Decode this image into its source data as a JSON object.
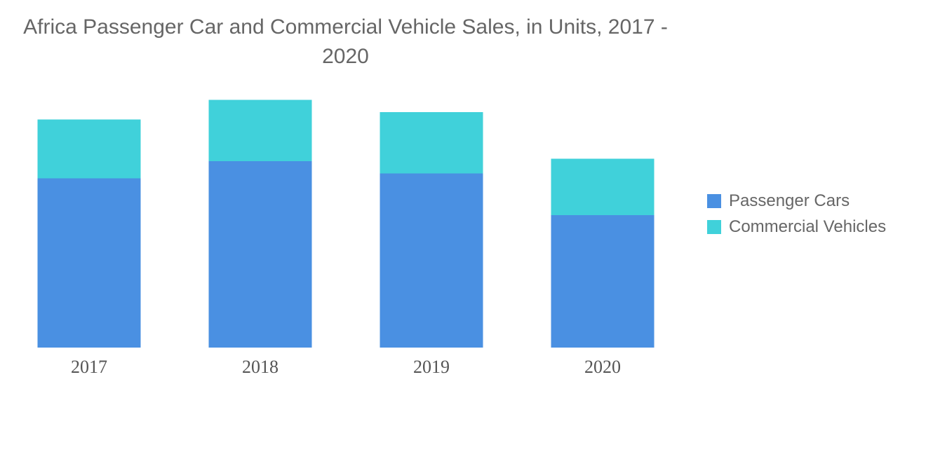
{
  "chart_data": {
    "type": "bar",
    "stacked": true,
    "title": "Africa Passenger Car and Commercial Vehicle Sales, in Units, 2017 - 2020",
    "categories": [
      "2017",
      "2018",
      "2019",
      "2020"
    ],
    "series": [
      {
        "name": "Passenger Cars",
        "color": "#4a90e2",
        "values": [
          69,
          76,
          71,
          54
        ]
      },
      {
        "name": "Commercial Vehicles",
        "color": "#40d1da",
        "values": [
          24,
          25,
          25,
          23
        ]
      }
    ],
    "xlabel": "",
    "ylabel": "",
    "ylim": [
      0,
      100
    ],
    "grid": false,
    "legend_position": "right"
  }
}
